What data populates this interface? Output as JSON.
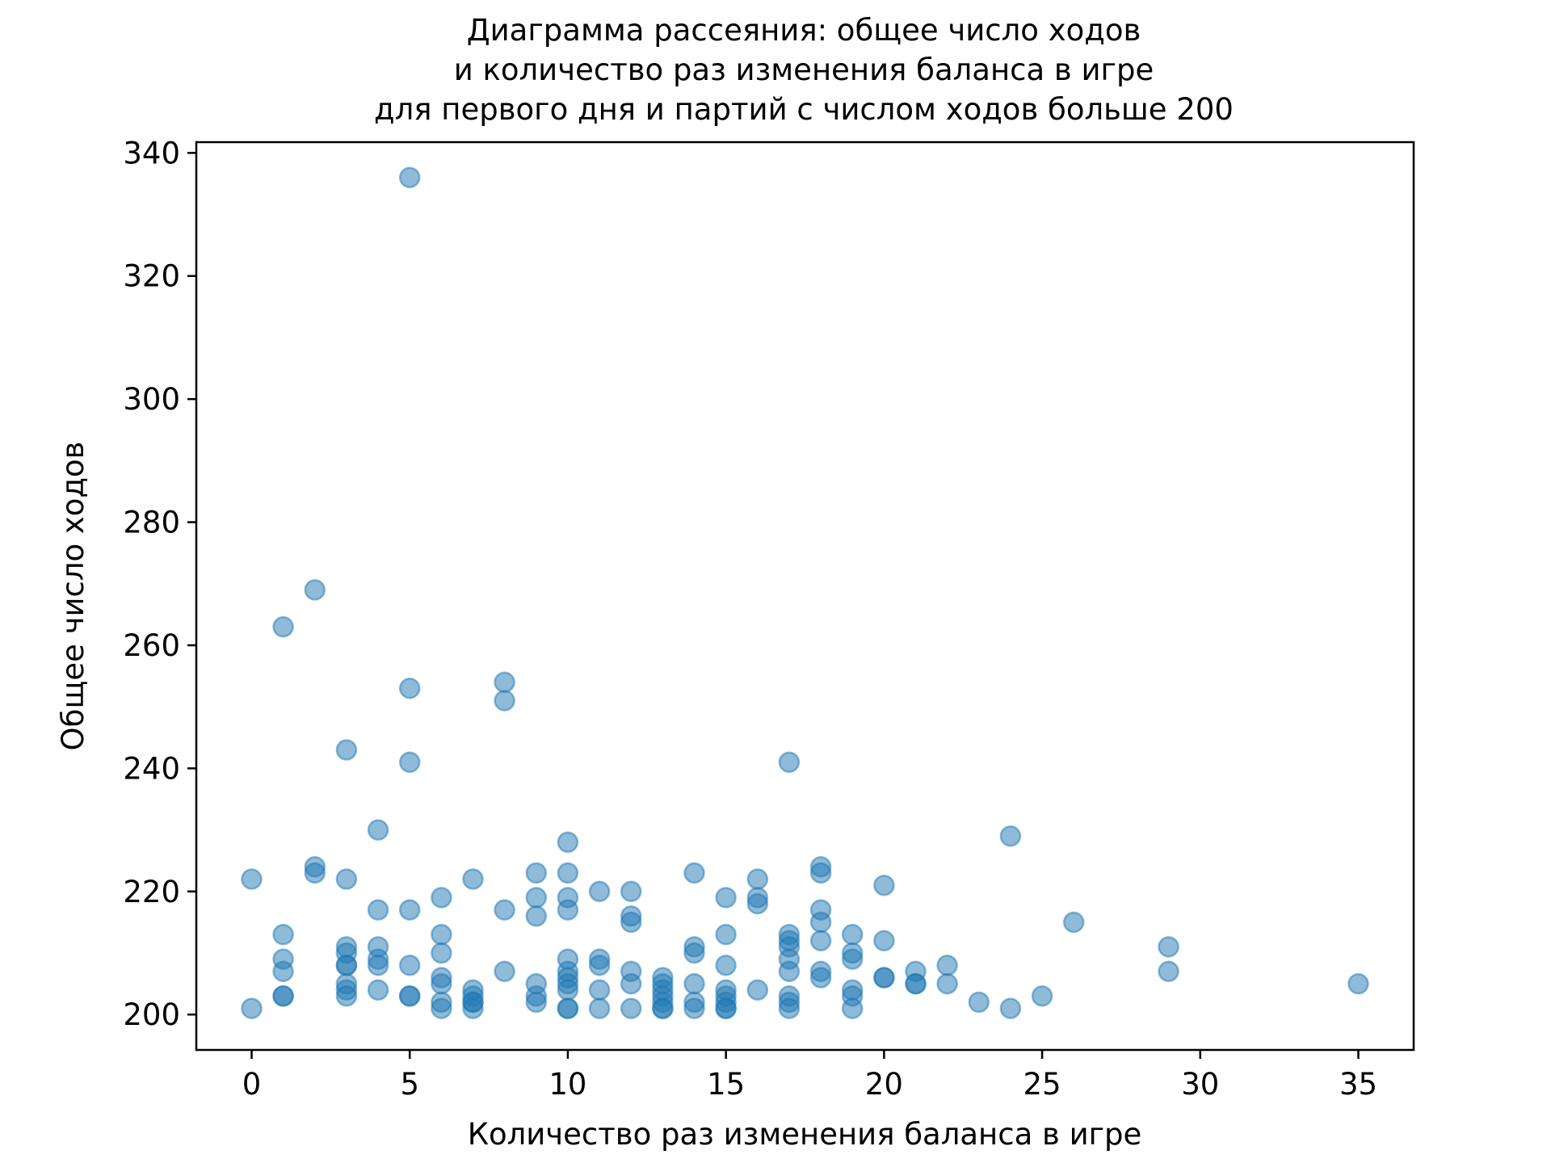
{
  "chart_data": {
    "type": "scatter",
    "title_lines": [
      "Диаграмма рассеяния: общее число ходов",
      "и количество раз изменения баланса в игре",
      "для первого дня и партий с числом ходов больше 200"
    ],
    "xlabel": "Количество раз изменения баланса в игре",
    "ylabel": "Общее число ходов",
    "xlim": [
      -1.75,
      36.75
    ],
    "ylim": [
      194.25,
      341.75
    ],
    "x_ticks": [
      0,
      5,
      10,
      15,
      20,
      25,
      30,
      35
    ],
    "y_ticks": [
      200,
      220,
      240,
      260,
      280,
      300,
      320,
      340
    ],
    "x_tick_labels": [
      "0",
      "5",
      "10",
      "15",
      "20",
      "25",
      "30",
      "35"
    ],
    "y_tick_labels": [
      "200",
      "220",
      "240",
      "260",
      "280",
      "300",
      "320",
      "340"
    ],
    "marker_color": "#1f77b4",
    "marker_alpha": 0.5,
    "grid": false,
    "points": [
      {
        "x": 0,
        "y": 222
      },
      {
        "x": 0,
        "y": 201
      },
      {
        "x": 1,
        "y": 263
      },
      {
        "x": 1,
        "y": 213
      },
      {
        "x": 1,
        "y": 209
      },
      {
        "x": 1,
        "y": 207
      },
      {
        "x": 1,
        "y": 203
      },
      {
        "x": 1,
        "y": 203
      },
      {
        "x": 2,
        "y": 269
      },
      {
        "x": 2,
        "y": 224
      },
      {
        "x": 2,
        "y": 223
      },
      {
        "x": 3,
        "y": 243
      },
      {
        "x": 3,
        "y": 222
      },
      {
        "x": 3,
        "y": 211
      },
      {
        "x": 3,
        "y": 210
      },
      {
        "x": 3,
        "y": 208
      },
      {
        "x": 3,
        "y": 208
      },
      {
        "x": 3,
        "y": 205
      },
      {
        "x": 3,
        "y": 204
      },
      {
        "x": 3,
        "y": 203
      },
      {
        "x": 4,
        "y": 230
      },
      {
        "x": 4,
        "y": 217
      },
      {
        "x": 4,
        "y": 211
      },
      {
        "x": 4,
        "y": 209
      },
      {
        "x": 4,
        "y": 208
      },
      {
        "x": 4,
        "y": 204
      },
      {
        "x": 5,
        "y": 336
      },
      {
        "x": 5,
        "y": 253
      },
      {
        "x": 5,
        "y": 241
      },
      {
        "x": 5,
        "y": 217
      },
      {
        "x": 5,
        "y": 208
      },
      {
        "x": 5,
        "y": 203
      },
      {
        "x": 5,
        "y": 203
      },
      {
        "x": 6,
        "y": 219
      },
      {
        "x": 6,
        "y": 213
      },
      {
        "x": 6,
        "y": 210
      },
      {
        "x": 6,
        "y": 206
      },
      {
        "x": 6,
        "y": 205
      },
      {
        "x": 6,
        "y": 202
      },
      {
        "x": 6,
        "y": 201
      },
      {
        "x": 7,
        "y": 222
      },
      {
        "x": 7,
        "y": 204
      },
      {
        "x": 7,
        "y": 203
      },
      {
        "x": 7,
        "y": 202
      },
      {
        "x": 7,
        "y": 202
      },
      {
        "x": 7,
        "y": 201
      },
      {
        "x": 8,
        "y": 254
      },
      {
        "x": 8,
        "y": 251
      },
      {
        "x": 8,
        "y": 217
      },
      {
        "x": 8,
        "y": 207
      },
      {
        "x": 9,
        "y": 223
      },
      {
        "x": 9,
        "y": 219
      },
      {
        "x": 9,
        "y": 216
      },
      {
        "x": 9,
        "y": 205
      },
      {
        "x": 9,
        "y": 203
      },
      {
        "x": 9,
        "y": 202
      },
      {
        "x": 10,
        "y": 228
      },
      {
        "x": 10,
        "y": 223
      },
      {
        "x": 10,
        "y": 219
      },
      {
        "x": 10,
        "y": 217
      },
      {
        "x": 10,
        "y": 209
      },
      {
        "x": 10,
        "y": 207
      },
      {
        "x": 10,
        "y": 206
      },
      {
        "x": 10,
        "y": 205
      },
      {
        "x": 10,
        "y": 204
      },
      {
        "x": 10,
        "y": 201
      },
      {
        "x": 10,
        "y": 201
      },
      {
        "x": 11,
        "y": 220
      },
      {
        "x": 11,
        "y": 209
      },
      {
        "x": 11,
        "y": 208
      },
      {
        "x": 11,
        "y": 204
      },
      {
        "x": 11,
        "y": 201
      },
      {
        "x": 12,
        "y": 220
      },
      {
        "x": 12,
        "y": 216
      },
      {
        "x": 12,
        "y": 215
      },
      {
        "x": 12,
        "y": 207
      },
      {
        "x": 12,
        "y": 205
      },
      {
        "x": 12,
        "y": 201
      },
      {
        "x": 13,
        "y": 206
      },
      {
        "x": 13,
        "y": 205
      },
      {
        "x": 13,
        "y": 204
      },
      {
        "x": 13,
        "y": 203
      },
      {
        "x": 13,
        "y": 202
      },
      {
        "x": 13,
        "y": 201
      },
      {
        "x": 13,
        "y": 201
      },
      {
        "x": 14,
        "y": 223
      },
      {
        "x": 14,
        "y": 211
      },
      {
        "x": 14,
        "y": 210
      },
      {
        "x": 14,
        "y": 205
      },
      {
        "x": 14,
        "y": 202
      },
      {
        "x": 14,
        "y": 201
      },
      {
        "x": 15,
        "y": 219
      },
      {
        "x": 15,
        "y": 213
      },
      {
        "x": 15,
        "y": 208
      },
      {
        "x": 15,
        "y": 204
      },
      {
        "x": 15,
        "y": 203
      },
      {
        "x": 15,
        "y": 202
      },
      {
        "x": 15,
        "y": 201
      },
      {
        "x": 15,
        "y": 201
      },
      {
        "x": 16,
        "y": 222
      },
      {
        "x": 16,
        "y": 219
      },
      {
        "x": 16,
        "y": 218
      },
      {
        "x": 16,
        "y": 204
      },
      {
        "x": 17,
        "y": 241
      },
      {
        "x": 17,
        "y": 213
      },
      {
        "x": 17,
        "y": 212
      },
      {
        "x": 17,
        "y": 211
      },
      {
        "x": 17,
        "y": 209
      },
      {
        "x": 17,
        "y": 207
      },
      {
        "x": 17,
        "y": 203
      },
      {
        "x": 17,
        "y": 202
      },
      {
        "x": 17,
        "y": 201
      },
      {
        "x": 18,
        "y": 224
      },
      {
        "x": 18,
        "y": 223
      },
      {
        "x": 18,
        "y": 217
      },
      {
        "x": 18,
        "y": 215
      },
      {
        "x": 18,
        "y": 212
      },
      {
        "x": 18,
        "y": 207
      },
      {
        "x": 18,
        "y": 206
      },
      {
        "x": 19,
        "y": 213
      },
      {
        "x": 19,
        "y": 210
      },
      {
        "x": 19,
        "y": 209
      },
      {
        "x": 19,
        "y": 204
      },
      {
        "x": 19,
        "y": 203
      },
      {
        "x": 19,
        "y": 201
      },
      {
        "x": 20,
        "y": 221
      },
      {
        "x": 20,
        "y": 212
      },
      {
        "x": 20,
        "y": 206
      },
      {
        "x": 20,
        "y": 206
      },
      {
        "x": 21,
        "y": 207
      },
      {
        "x": 21,
        "y": 205
      },
      {
        "x": 21,
        "y": 205
      },
      {
        "x": 22,
        "y": 208
      },
      {
        "x": 22,
        "y": 205
      },
      {
        "x": 23,
        "y": 202
      },
      {
        "x": 24,
        "y": 229
      },
      {
        "x": 24,
        "y": 201
      },
      {
        "x": 25,
        "y": 203
      },
      {
        "x": 26,
        "y": 215
      },
      {
        "x": 29,
        "y": 211
      },
      {
        "x": 29,
        "y": 207
      },
      {
        "x": 35,
        "y": 205
      }
    ]
  }
}
